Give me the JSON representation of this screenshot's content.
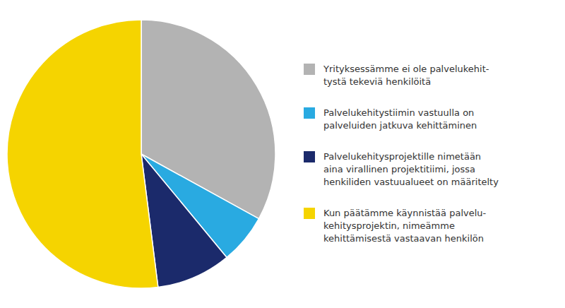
{
  "chart_data": {
    "type": "pie",
    "categories": [
      "Yrityksessämme ei ole palvelukehit-\ntystä tekeviä henkilöitä",
      "Palvelukehitystiimin vastuulla on\npalveluiden jatkuva kehittäminen",
      "Palvelukehitysprojektille nimetään\naina virallinen projektitiimi, jossa\nhenkiliden vastuualueet on määritelty",
      "Kun päätämme käynnistää palvelu-\nkehitysprojektin, nimeämme\nkehittämisestä vastaavan henkilön"
    ],
    "values": [
      33,
      6,
      9,
      52
    ],
    "colors": [
      "#b3b3b3",
      "#29aae1",
      "#1b2a6b",
      "#f5d400"
    ]
  }
}
